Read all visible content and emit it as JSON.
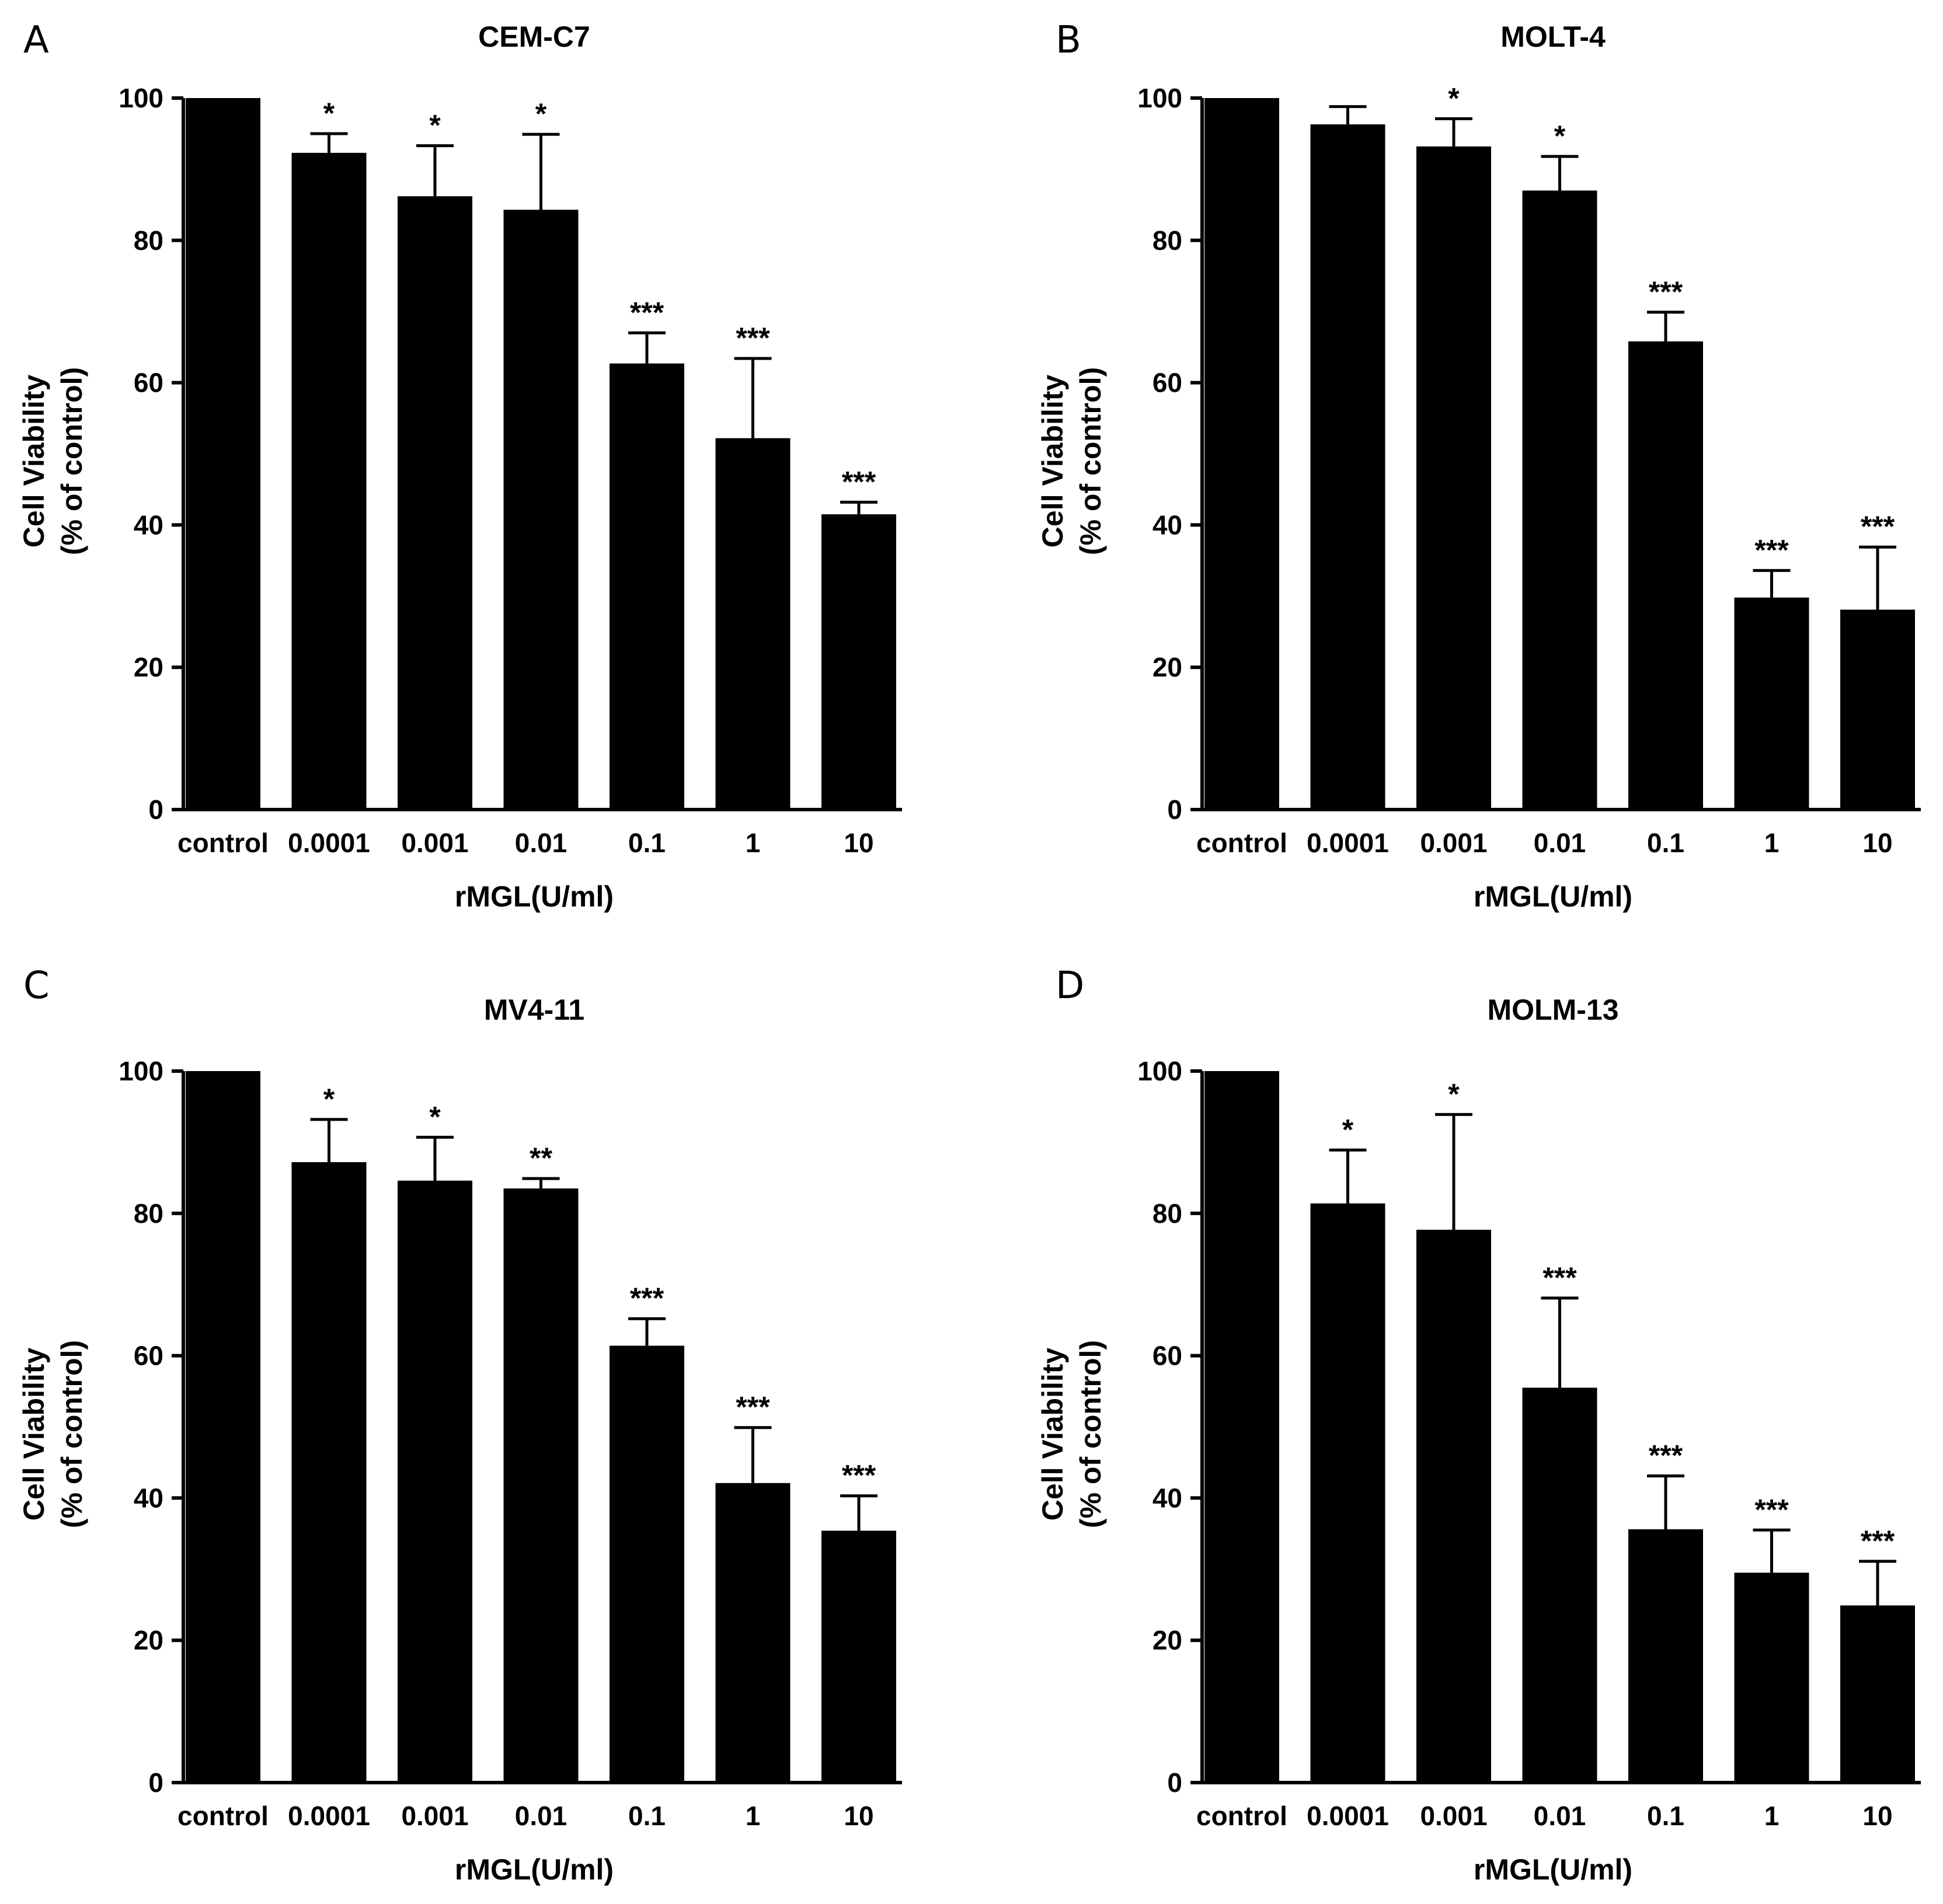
{
  "colors": {
    "bar": "#000000",
    "axis": "#000000",
    "background": "#ffffff"
  },
  "chart_data": [
    {
      "panel": "A",
      "type": "bar",
      "title": "CEM-C7",
      "xlabel": "rMGL(U/ml)",
      "ylabel_line1": "Cell Viability",
      "ylabel_line2": "(% of control)",
      "ylim": [
        0,
        100
      ],
      "yticks": [
        "0",
        "20",
        "40",
        "60",
        "80",
        "100"
      ],
      "categories": [
        "control",
        "0.0001",
        "0.001",
        "0.01",
        "0.1",
        "1",
        "10"
      ],
      "values": [
        100,
        92.3,
        86.2,
        84.3,
        62.7,
        52.2,
        41.5
      ],
      "errors": [
        0,
        2.7,
        7.1,
        10.6,
        4.3,
        11.2,
        1.7
      ],
      "significance": [
        "",
        "*",
        "*",
        "*",
        "***",
        "***",
        "***"
      ]
    },
    {
      "panel": "B",
      "type": "bar",
      "title": "MOLT-4",
      "xlabel": "rMGL(U/ml)",
      "ylabel_line1": "Cell Viability",
      "ylabel_line2": "(% of control)",
      "ylim": [
        0,
        100
      ],
      "yticks": [
        "0",
        "20",
        "40",
        "60",
        "80",
        "100"
      ],
      "categories": [
        "control",
        "0.0001",
        "0.001",
        "0.01",
        "0.1",
        "1",
        "10"
      ],
      "values": [
        100,
        96.3,
        93.2,
        87.0,
        65.8,
        29.8,
        28.1
      ],
      "errors": [
        0,
        2.5,
        3.9,
        4.8,
        4.1,
        3.8,
        8.8
      ],
      "significance": [
        "",
        "",
        "*",
        "*",
        "***",
        "***",
        "***"
      ]
    },
    {
      "panel": "C",
      "type": "bar",
      "title": "MV4-11",
      "xlabel": "rMGL(U/ml)",
      "ylabel_line1": "Cell Viability",
      "ylabel_line2": "(% of control)",
      "ylim": [
        0,
        100
      ],
      "yticks": [
        "0",
        "20",
        "40",
        "60",
        "80",
        "100"
      ],
      "categories": [
        "control",
        "0.0001",
        "0.001",
        "0.01",
        "0.1",
        "1",
        "10"
      ],
      "values": [
        100,
        87.2,
        84.6,
        83.5,
        61.4,
        42.1,
        35.4
      ],
      "errors": [
        0,
        6.0,
        6.1,
        1.4,
        3.8,
        7.8,
        4.9
      ],
      "significance": [
        "",
        "*",
        "*",
        "**",
        "***",
        "***",
        "***"
      ]
    },
    {
      "panel": "D",
      "type": "bar",
      "title": "MOLM-13",
      "xlabel": "rMGL(U/ml)",
      "ylabel_line1": "Cell Viability",
      "ylabel_line2": "(% of control)",
      "ylim": [
        0,
        100
      ],
      "yticks": [
        "0",
        "20",
        "40",
        "60",
        "80",
        "100"
      ],
      "categories": [
        "control",
        "0.0001",
        "0.001",
        "0.01",
        "0.1",
        "1",
        "10"
      ],
      "values": [
        100,
        81.4,
        77.7,
        55.5,
        35.6,
        29.5,
        24.9
      ],
      "errors": [
        0,
        7.5,
        16.2,
        12.6,
        7.5,
        6.0,
        6.2
      ],
      "significance": [
        "",
        "*",
        "*",
        "***",
        "***",
        "***",
        "***"
      ]
    }
  ]
}
